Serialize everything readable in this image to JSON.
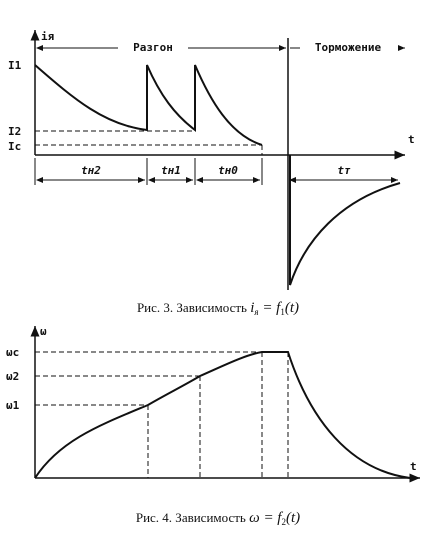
{
  "figure1": {
    "axis_y": "iя",
    "axis_x": "t",
    "phase_accel": "Разгон",
    "phase_brake": "Торможение",
    "levels": [
      "I1",
      "I2",
      "Ic"
    ],
    "intervals": [
      "tн2",
      "tн1",
      "tн0",
      "tт"
    ],
    "caption": {
      "prefix": "Рис. 3. Зависимость",
      "var": "i",
      "var_sub": "я",
      "eq": " = f",
      "f_sub": "1",
      "tail": "(t)"
    }
  },
  "figure2": {
    "axis_y": "ω",
    "axis_x": "t",
    "levels": [
      "ωc",
      "ω2",
      "ω1"
    ],
    "caption": {
      "prefix": "Рис. 4. Зависимость",
      "var": "ω",
      "eq": " = f",
      "f_sub": "2",
      "tail": "(t)"
    }
  }
}
